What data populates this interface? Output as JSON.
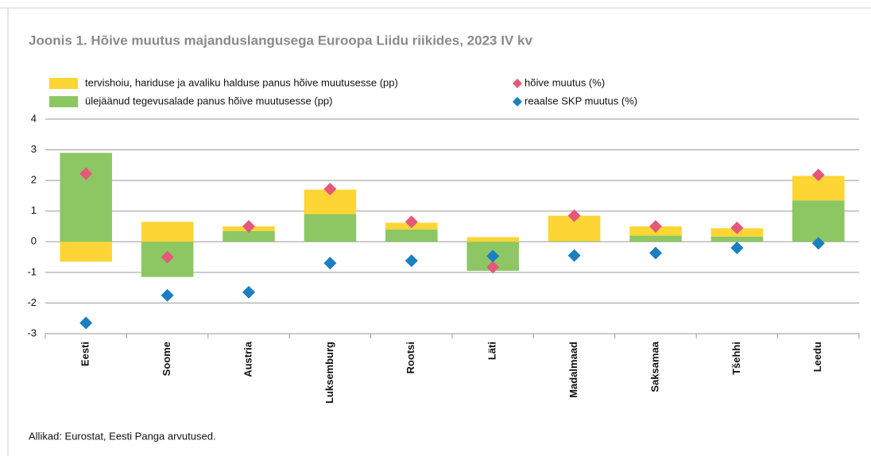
{
  "chart_data": {
    "type": "bar",
    "stacked": true,
    "title": "Joonis 1. Hõive muutus majanduslangusega Euroopa Liidu riikides, 2023 IV kv",
    "source": "Allikad: Eurostat, Eesti Panga arvutused.",
    "categories": [
      "Eesti",
      "Soome",
      "Austria",
      "Luksemburg",
      "Rootsi",
      "Läti",
      "Madalmaad",
      "Saksamaa",
      "Tšehhi",
      "Leedu"
    ],
    "series": [
      {
        "name": "ülejäänud tegevusalade panus hõive muutusesse (pp)",
        "type": "bar",
        "color": "#8cc763",
        "values": [
          2.9,
          -1.15,
          0.35,
          0.9,
          0.4,
          -0.95,
          0.02,
          0.2,
          0.17,
          1.35
        ]
      },
      {
        "name": "tervishoiu, hariduse ja avaliku halduse panus hõive muutusesse (pp)",
        "type": "bar",
        "color": "#fdd535",
        "values": [
          -0.65,
          0.65,
          0.15,
          0.8,
          0.22,
          0.15,
          0.83,
          0.3,
          0.27,
          0.8
        ]
      },
      {
        "name": "hõive muutus (%)",
        "type": "scatter",
        "marker": "diamond",
        "color": "#e6577a",
        "values": [
          2.22,
          -0.5,
          0.5,
          1.72,
          0.65,
          -0.83,
          0.85,
          0.5,
          0.45,
          2.18
        ]
      },
      {
        "name": "reaalse SKP muutus (%)",
        "type": "scatter",
        "marker": "diamond",
        "color": "#1b7fc1",
        "values": [
          -2.65,
          -1.75,
          -1.65,
          -0.7,
          -0.62,
          -0.47,
          -0.45,
          -0.37,
          -0.2,
          -0.05
        ]
      }
    ],
    "ylim": [
      -3,
      4
    ],
    "yticks": [
      -3,
      -2,
      -1,
      0,
      1,
      2,
      3,
      4
    ],
    "grid": true
  }
}
